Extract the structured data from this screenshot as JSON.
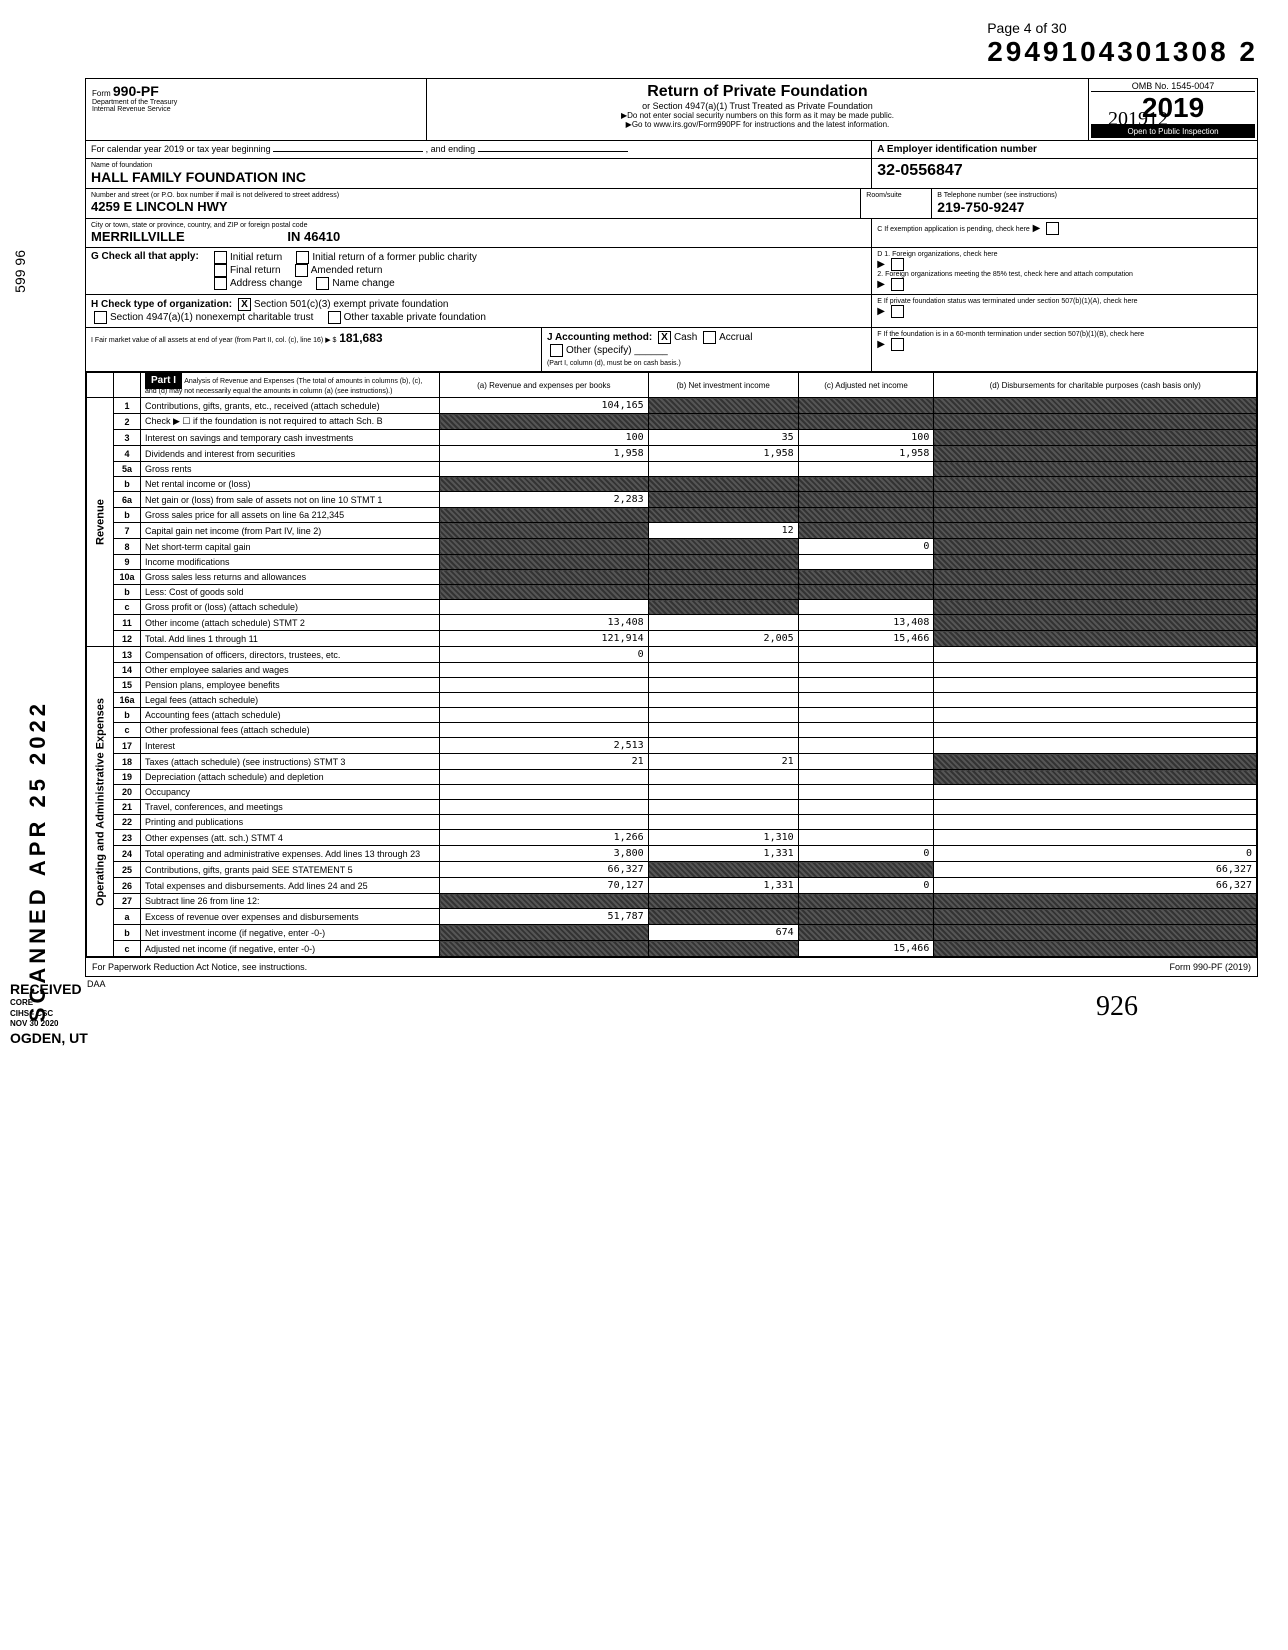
{
  "page_label": "Page 4 of 30",
  "ocr_number": "2949104301308  2",
  "year_scribble": "201912",
  "vertical_stamp": "SCANNED APR 25 2022",
  "received_stamp": "RECEIVED",
  "received_line1": "CORE",
  "received_line2": "CIHS - CSC",
  "received_line3": "NOV 30 2020",
  "ogden_stamp": "OGDEN, UT",
  "signature": "926",
  "form": {
    "title": "Return of Private Foundation",
    "subtitle": "or Section 4947(a)(1) Trust Treated as Private Foundation",
    "note1": "▶Do not enter social security numbers on this form as it may be made public.",
    "note2": "▶Go to www.irs.gov/Form990PF for instructions and the latest information.",
    "dept": "Department of the Treasury",
    "irs": "Internal Revenue Service",
    "cal_year_label": "For calendar year 2019 or tax year beginning",
    "cal_year_mid": ", and ending",
    "omb": "OMB No. 1545-0047",
    "tax_year": "2019",
    "open_inspect": "Open to Public Inspection"
  },
  "header": {
    "name_label": "Name of foundation",
    "name": "HALL FAMILY FOUNDATION INC",
    "addr_label": "Number and street (or P.O. box number if mail is not delivered to street address)",
    "addr": "4259 E LINCOLN HWY",
    "room_label": "Room/suite",
    "city_label": "City or town, state or province, country, and ZIP or foreign postal code",
    "city": "MERRILLVILLE",
    "state_zip": "IN  46410",
    "ein_label_a": "A  Employer identification number",
    "ein": "32-0556847",
    "tel_label_b": "B  Telephone number (see instructions)",
    "tel": "219-750-9247",
    "c_label": "C  If exemption application is pending, check here",
    "d1_label": "D  1. Foreign organizations, check here",
    "d2_label": "    2. Foreign organizations meeting the 85% test, check here and attach computation",
    "e_label": "E  If private foundation status was terminated under section 507(b)(1)(A), check here",
    "f_label": "F  If the foundation is in a 60-month termination under section 507(b)(1)(B), check here",
    "g_label": "G  Check all that apply:",
    "g_opts": [
      "Initial return",
      "Final return",
      "Address change",
      "Initial return of a former public charity",
      "Amended return",
      "Name change"
    ],
    "h_label": "H  Check type of organization:",
    "h_opt1": "Section 501(c)(3) exempt private foundation",
    "h_opt2": "Section 4947(a)(1) nonexempt charitable trust",
    "h_opt3": "Other taxable private foundation",
    "i_label": "I  Fair market value of all assets at end of year (from Part II, col. (c), line 16) ▶ $",
    "i_value": "181,683",
    "j_label": "J  Accounting method:",
    "j_cash": "Cash",
    "j_accrual": "Accrual",
    "j_other": "Other (specify)",
    "j_note": "(Part I, column (d), must be on cash basis.)"
  },
  "part1": {
    "band": "Part I",
    "title": "Analysis of Revenue and Expenses (The total of amounts in columns (b), (c), and (d) may not necessarily equal the amounts in column (a) (see instructions).)",
    "cols": {
      "a": "(a) Revenue and expenses per books",
      "b": "(b) Net investment income",
      "c": "(c) Adjusted net income",
      "d": "(d) Disbursements for charitable purposes (cash basis only)"
    },
    "side_rev": "Revenue",
    "side_exp": "Operating and Administrative Expenses",
    "rows": [
      {
        "n": "1",
        "desc": "Contributions, gifts, grants, etc., received (attach schedule)",
        "a": "104,165",
        "b_black": true,
        "c_black": true,
        "d_black": true
      },
      {
        "n": "2",
        "desc": "Check ▶ ☐ if the foundation is not required to attach Sch. B",
        "a_black": true,
        "b_black": true,
        "c_black": true,
        "d_black": true
      },
      {
        "n": "3",
        "desc": "Interest on savings and temporary cash investments",
        "a": "100",
        "b": "35",
        "c": "100",
        "d_black": true
      },
      {
        "n": "4",
        "desc": "Dividends and interest from securities",
        "a": "1,958",
        "b": "1,958",
        "c": "1,958",
        "d_black": true
      },
      {
        "n": "5a",
        "desc": "Gross rents",
        "a": "",
        "b": "",
        "c": "",
        "d_black": true
      },
      {
        "n": "b",
        "desc": "Net rental income or (loss)",
        "a_black": true,
        "b_black": true,
        "c_black": true,
        "d_black": true
      },
      {
        "n": "6a",
        "desc": "Net gain or (loss) from sale of assets not on line 10  STMT 1",
        "a": "2,283",
        "b_black": true,
        "c_black": true,
        "d_black": true
      },
      {
        "n": "b",
        "desc": "Gross sales price for all assets on line 6a               212,345",
        "a_black": true,
        "b_black": true,
        "c_black": true,
        "d_black": true
      },
      {
        "n": "7",
        "desc": "Capital gain net income (from Part IV, line 2)",
        "a_black": true,
        "b": "12",
        "c_black": true,
        "d_black": true
      },
      {
        "n": "8",
        "desc": "Net short-term capital gain",
        "a_black": true,
        "b_black": true,
        "c": "0",
        "d_black": true
      },
      {
        "n": "9",
        "desc": "Income modifications",
        "a_black": true,
        "b_black": true,
        "c": "",
        "d_black": true
      },
      {
        "n": "10a",
        "desc": "Gross sales less returns and allowances",
        "a_black": true,
        "b_black": true,
        "c_black": true,
        "d_black": true
      },
      {
        "n": "b",
        "desc": "Less: Cost of goods sold",
        "a_black": true,
        "b_black": true,
        "c_black": true,
        "d_black": true
      },
      {
        "n": "c",
        "desc": "Gross profit or (loss) (attach schedule)",
        "a": "",
        "b_black": true,
        "c": "",
        "d_black": true
      },
      {
        "n": "11",
        "desc": "Other income (attach schedule)      STMT 2",
        "a": "13,408",
        "b": "",
        "c": "13,408",
        "d_black": true
      },
      {
        "n": "12",
        "desc": "Total. Add lines 1 through 11",
        "a": "121,914",
        "b": "2,005",
        "c": "15,466",
        "d_black": true
      },
      {
        "n": "13",
        "desc": "Compensation of officers, directors, trustees, etc.",
        "a": "0",
        "b": "",
        "c": "",
        "d": ""
      },
      {
        "n": "14",
        "desc": "Other employee salaries and wages",
        "a": "",
        "b": "",
        "c": "",
        "d": ""
      },
      {
        "n": "15",
        "desc": "Pension plans, employee benefits",
        "a": "",
        "b": "",
        "c": "",
        "d": ""
      },
      {
        "n": "16a",
        "desc": "Legal fees (attach schedule)",
        "a": "",
        "b": "",
        "c": "",
        "d": ""
      },
      {
        "n": "b",
        "desc": "Accounting fees (attach schedule)",
        "a": "",
        "b": "",
        "c": "",
        "d": ""
      },
      {
        "n": "c",
        "desc": "Other professional fees (attach schedule)",
        "a": "",
        "b": "",
        "c": "",
        "d": ""
      },
      {
        "n": "17",
        "desc": "Interest",
        "a": "2,513",
        "b": "",
        "c": "",
        "d": ""
      },
      {
        "n": "18",
        "desc": "Taxes (attach schedule) (see instructions)  STMT 3",
        "a": "21",
        "b": "21",
        "c": "",
        "d_black": true
      },
      {
        "n": "19",
        "desc": "Depreciation (attach schedule) and depletion",
        "a": "",
        "b": "",
        "c": "",
        "d_black": true
      },
      {
        "n": "20",
        "desc": "Occupancy",
        "a": "",
        "b": "",
        "c": "",
        "d": ""
      },
      {
        "n": "21",
        "desc": "Travel, conferences, and meetings",
        "a": "",
        "b": "",
        "c": "",
        "d": ""
      },
      {
        "n": "22",
        "desc": "Printing and publications",
        "a": "",
        "b": "",
        "c": "",
        "d": ""
      },
      {
        "n": "23",
        "desc": "Other expenses (att. sch.)             STMT 4",
        "a": "1,266",
        "b": "1,310",
        "c": "",
        "d": ""
      },
      {
        "n": "24",
        "desc": "Total operating and administrative expenses. Add lines 13 through 23",
        "a": "3,800",
        "b": "1,331",
        "c": "0",
        "d": "0"
      },
      {
        "n": "25",
        "desc": "Contributions, gifts, grants paid   SEE STATEMENT 5",
        "a": "66,327",
        "b_black": true,
        "c_black": true,
        "d": "66,327"
      },
      {
        "n": "26",
        "desc": "Total expenses and disbursements. Add lines 24 and 25",
        "a": "70,127",
        "b": "1,331",
        "c": "0",
        "d": "66,327"
      },
      {
        "n": "27",
        "desc": "Subtract line 26 from line 12:",
        "a_black": true,
        "b_black": true,
        "c_black": true,
        "d_black": true
      },
      {
        "n": "a",
        "desc": "Excess of revenue over expenses and disbursements",
        "a": "51,787",
        "b_black": true,
        "c_black": true,
        "d_black": true
      },
      {
        "n": "b",
        "desc": "Net investment income (if negative, enter -0-)",
        "a_black": true,
        "b": "674",
        "c_black": true,
        "d_black": true
      },
      {
        "n": "c",
        "desc": "Adjusted net income (if negative, enter -0-)",
        "a_black": true,
        "b_black": true,
        "c": "15,466",
        "d_black": true
      }
    ]
  },
  "footer": {
    "left": "For Paperwork Reduction Act Notice, see instructions.",
    "mid": "DAA",
    "right": "Form 990-PF (2019)"
  },
  "left_margin": "599 96"
}
